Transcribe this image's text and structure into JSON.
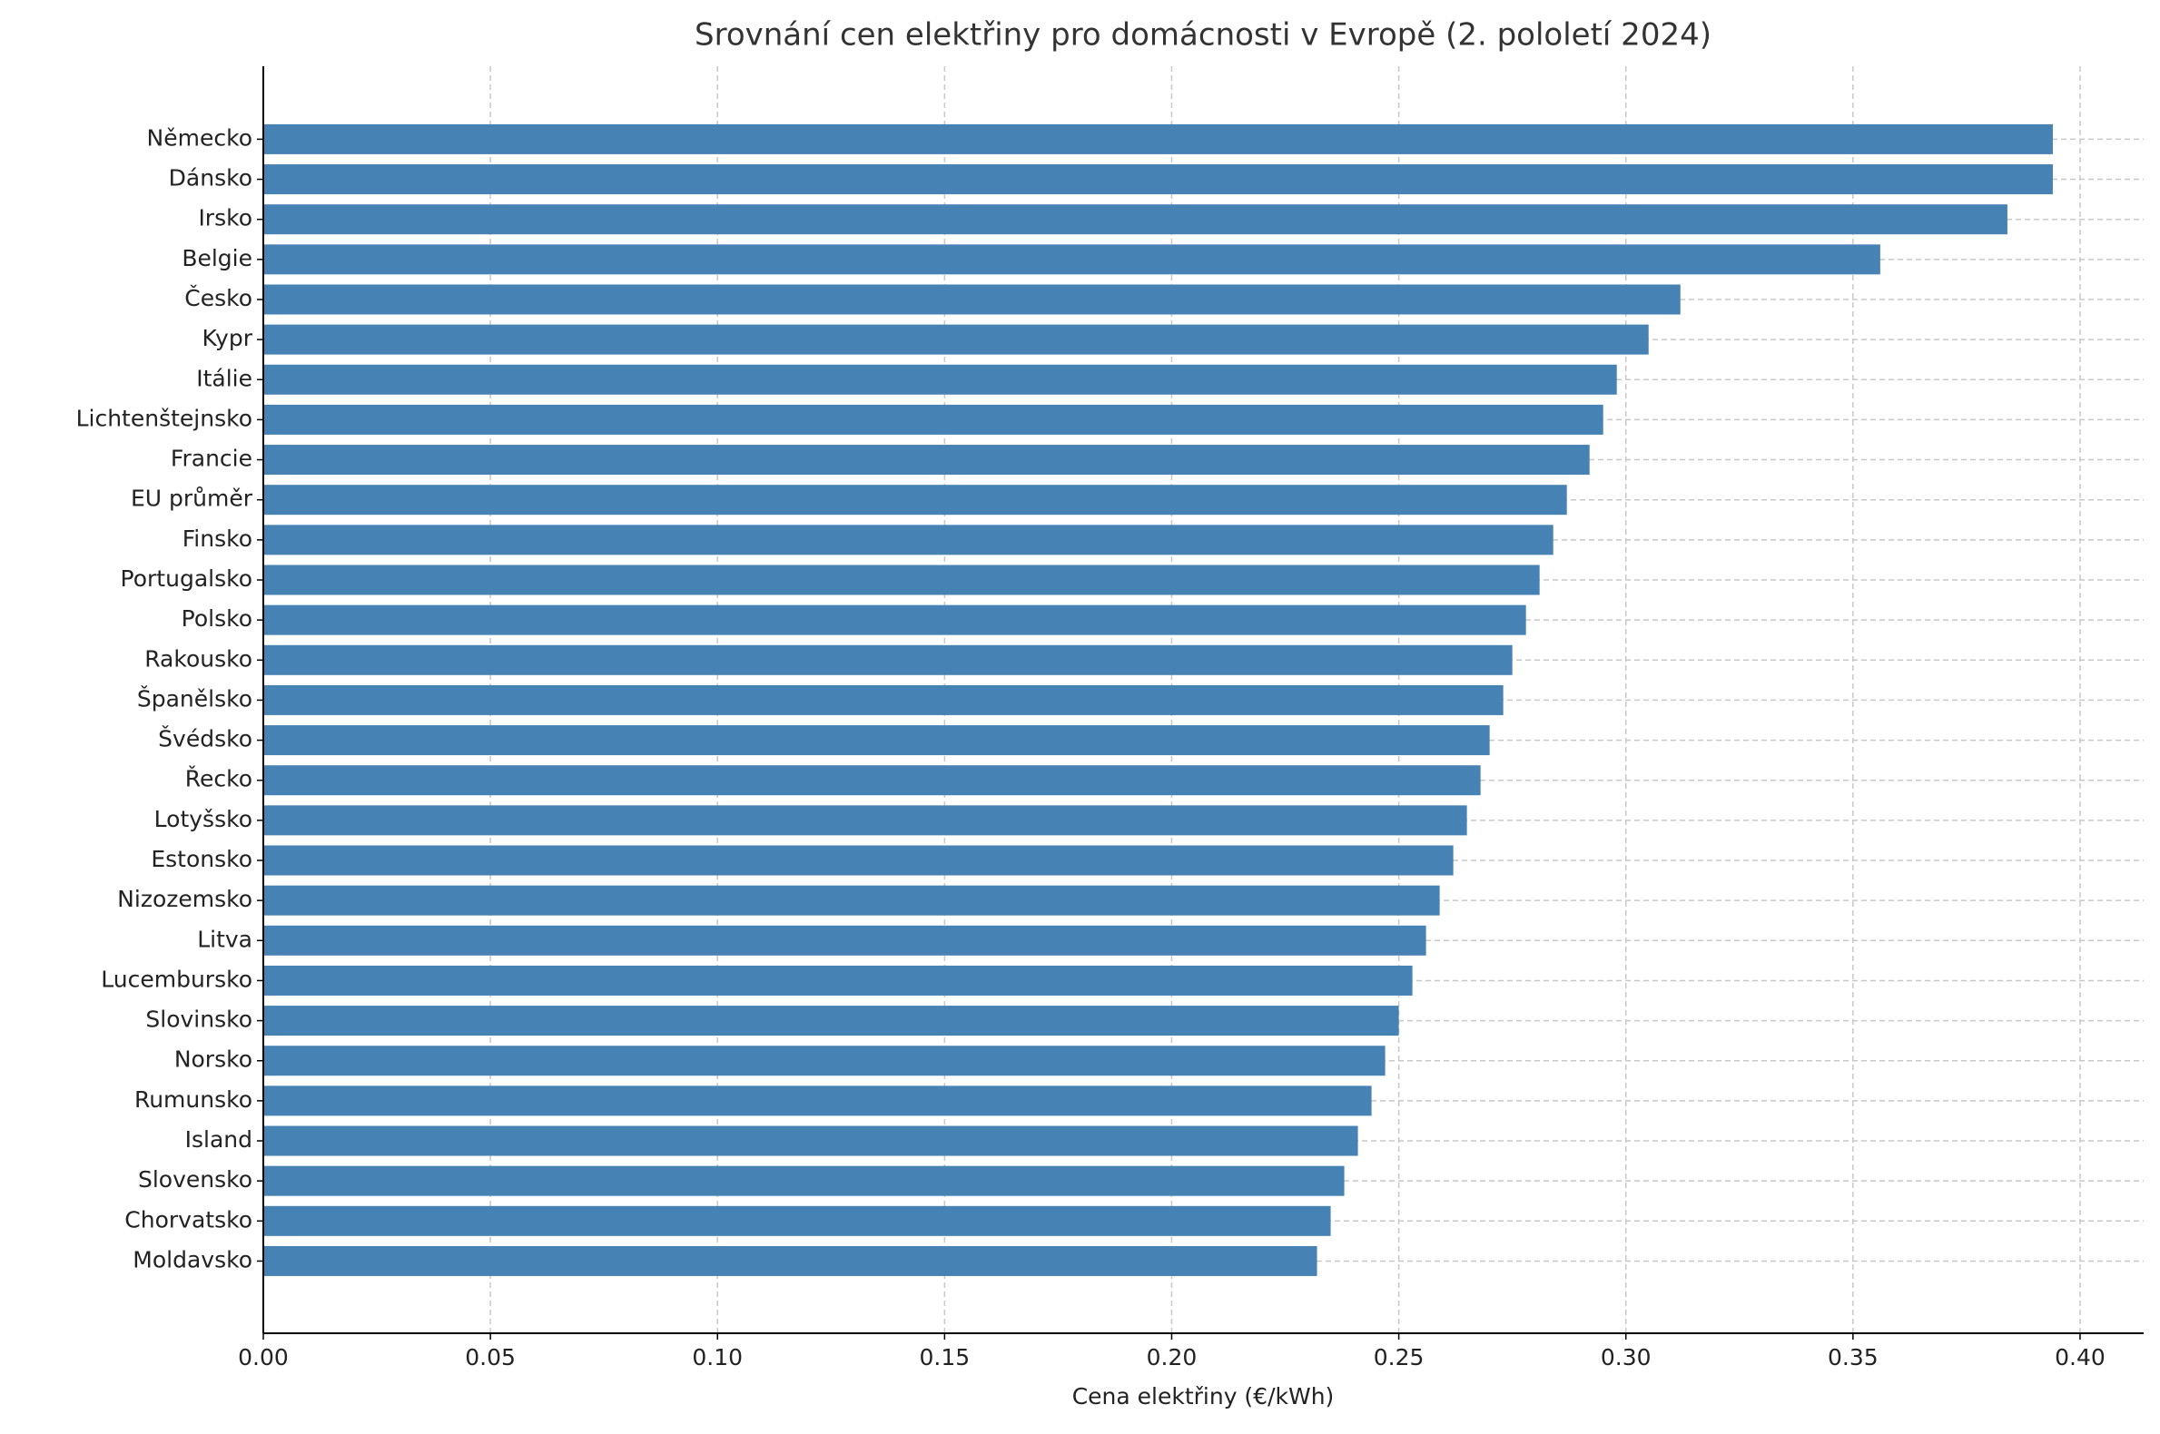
{
  "chart_data": {
    "type": "barh",
    "title": "Srovnání cen elektřiny pro domácnosti v Evropě (2. pololetí 2024)",
    "x_label": "Cena elektřiny (€/kWh)",
    "categories": [
      "Německo",
      "Dánsko",
      "Irsko",
      "Belgie",
      "Česko",
      "Kypr",
      "Itálie",
      "Lichtenštejnsko",
      "Francie",
      "EU průměr",
      "Finsko",
      "Portugalsko",
      "Polsko",
      "Rakousko",
      "Španělsko",
      "Švédsko",
      "Řecko",
      "Lotyšsko",
      "Estonsko",
      "Nizozemsko",
      "Litva",
      "Lucembursko",
      "Slovinsko",
      "Norsko",
      "Rumunsko",
      "Island",
      "Slovensko",
      "Chorvatsko",
      "Moldavsko"
    ],
    "values": [
      0.394,
      0.394,
      0.384,
      0.356,
      0.312,
      0.305,
      0.298,
      0.295,
      0.292,
      0.287,
      0.284,
      0.281,
      0.278,
      0.275,
      0.273,
      0.27,
      0.268,
      0.265,
      0.262,
      0.259,
      0.256,
      0.253,
      0.25,
      0.247,
      0.244,
      0.241,
      0.238,
      0.235,
      0.232
    ],
    "color": "#4682b4",
    "xlim": [
      0,
      0.414
    ],
    "xticks": [
      {
        "value": 0,
        "label": "0.00"
      },
      {
        "value": 0.05,
        "label": "0.05"
      },
      {
        "value": 0.1,
        "label": "0.10"
      },
      {
        "value": 0.15,
        "label": "0.15"
      },
      {
        "value": 0.2,
        "label": "0.20"
      },
      {
        "value": 0.25,
        "label": "0.25"
      },
      {
        "value": 0.3,
        "label": "0.30"
      },
      {
        "value": 0.35,
        "label": "0.35"
      },
      {
        "value": 0.4,
        "label": "0.40"
      }
    ],
    "grid": true
  }
}
